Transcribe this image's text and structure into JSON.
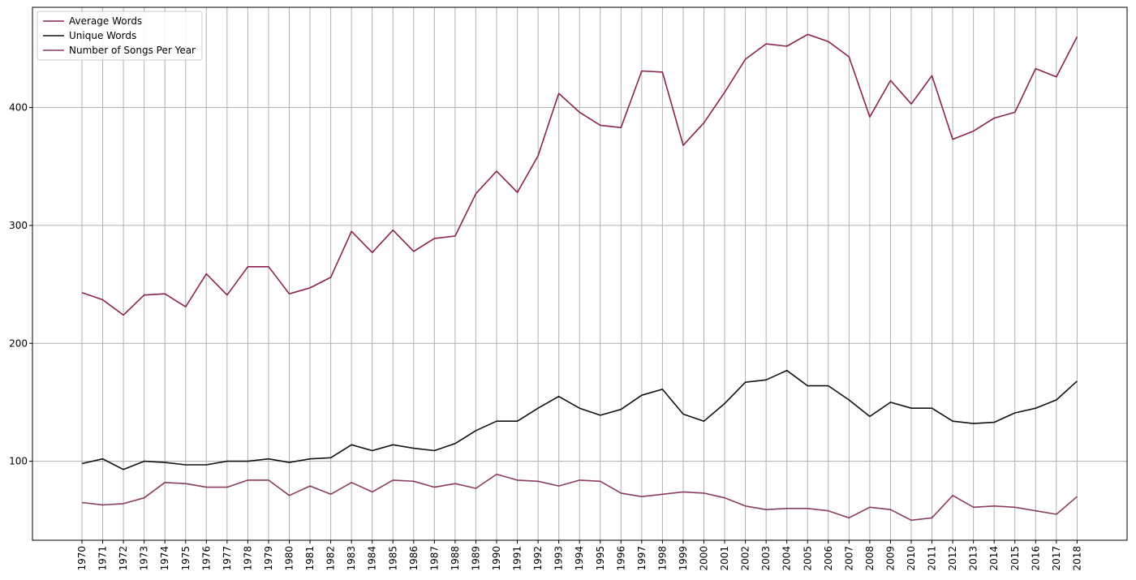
{
  "chart_data": {
    "type": "line",
    "title": "",
    "xlabel": "",
    "ylabel": "",
    "x": [
      "1970",
      "1971",
      "1972",
      "1973",
      "1974",
      "1975",
      "1976",
      "1977",
      "1978",
      "1979",
      "1980",
      "1981",
      "1982",
      "1983",
      "1984",
      "1985",
      "1986",
      "1987",
      "1988",
      "1989",
      "1990",
      "1991",
      "1992",
      "1993",
      "1994",
      "1995",
      "1996",
      "1997",
      "1998",
      "1999",
      "2000",
      "2001",
      "2002",
      "2003",
      "2004",
      "2005",
      "2006",
      "2007",
      "2008",
      "2009",
      "2010",
      "2011",
      "2012",
      "2013",
      "2014",
      "2015",
      "2016",
      "2017",
      "2018"
    ],
    "yticks": [
      100,
      200,
      300,
      400
    ],
    "ylim": [
      33,
      485
    ],
    "grid": true,
    "legend_position": "top-left",
    "series": [
      {
        "name": "Average Words",
        "color": "#8b2252",
        "values": [
          243,
          237,
          224,
          241,
          242,
          231,
          259,
          241,
          265,
          265,
          242,
          247,
          256,
          295,
          277,
          296,
          278,
          289,
          291,
          327,
          346,
          328,
          359,
          412,
          396,
          385,
          383,
          431,
          430,
          368,
          387,
          413,
          441,
          454,
          452,
          462,
          456,
          443,
          392,
          423,
          403,
          427,
          373,
          380,
          391,
          396,
          433,
          426,
          460
        ]
      },
      {
        "name": "Unique Words",
        "color": "#111111",
        "values": [
          98,
          102,
          93,
          100,
          99,
          97,
          97,
          100,
          100,
          102,
          99,
          102,
          103,
          114,
          109,
          114,
          111,
          109,
          115,
          126,
          134,
          134,
          145,
          155,
          145,
          139,
          144,
          156,
          161,
          140,
          134,
          149,
          167,
          169,
          177,
          164,
          164,
          152,
          138,
          150,
          145,
          145,
          134,
          132,
          133,
          141,
          145,
          152,
          168
        ]
      },
      {
        "name": "Number of Songs Per Year",
        "color": "#8b3a62",
        "values": [
          65,
          63,
          64,
          69,
          82,
          81,
          78,
          78,
          84,
          84,
          71,
          79,
          72,
          82,
          74,
          84,
          83,
          78,
          81,
          77,
          89,
          84,
          83,
          79,
          84,
          83,
          73,
          70,
          72,
          74,
          73,
          69,
          62,
          59,
          60,
          60,
          58,
          52,
          61,
          59,
          50,
          52,
          71,
          61,
          62,
          61,
          58,
          55,
          70
        ]
      }
    ]
  }
}
